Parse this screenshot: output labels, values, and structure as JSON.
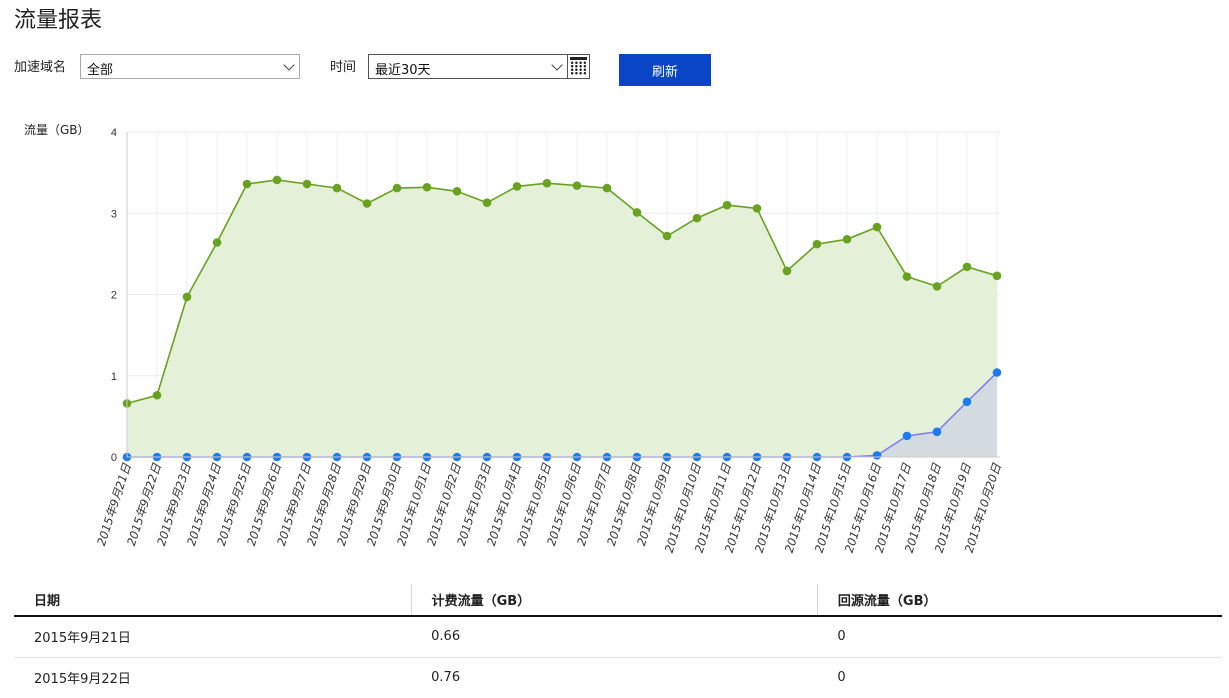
{
  "page": {
    "title": "流量报表"
  },
  "filters": {
    "domain_label": "加速域名",
    "domain_value": "全部",
    "time_label": "时间",
    "time_value": "最近30天",
    "refresh_label": "刷新"
  },
  "chart_data": {
    "type": "area",
    "ylabel": "流量（GB）",
    "ylim": [
      0,
      4
    ],
    "yticks": [
      0,
      1,
      2,
      3,
      4
    ],
    "grid": true,
    "categories": [
      "2015年9月21日",
      "2015年9月22日",
      "2015年9月23日",
      "2015年9月24日",
      "2015年9月25日",
      "2015年9月26日",
      "2015年9月27日",
      "2015年9月28日",
      "2015年9月29日",
      "2015年9月30日",
      "2015年10月1日",
      "2015年10月2日",
      "2015年10月3日",
      "2015年10月4日",
      "2015年10月5日",
      "2015年10月6日",
      "2015年10月7日",
      "2015年10月8日",
      "2015年10月9日",
      "2015年10月10日",
      "2015年10月11日",
      "2015年10月12日",
      "2015年10月13日",
      "2015年10月14日",
      "2015年10月15日",
      "2015年10月16日",
      "2015年10月17日",
      "2015年10月18日",
      "2015年10月19日",
      "2015年10月20日"
    ],
    "series": [
      {
        "name": "计费流量（GB）",
        "color": "#6aa121",
        "fill": "#e4f1d8",
        "values": [
          0.66,
          0.76,
          1.97,
          2.64,
          3.36,
          3.41,
          3.36,
          3.31,
          3.12,
          3.31,
          3.32,
          3.27,
          3.13,
          3.33,
          3.37,
          3.34,
          3.31,
          3.01,
          2.72,
          2.94,
          3.1,
          3.06,
          2.29,
          2.62,
          2.68,
          2.83,
          2.22,
          2.1,
          2.34,
          2.23
        ]
      },
      {
        "name": "回源流量（GB）",
        "color": "#1a7cf0",
        "line": "#8080f0",
        "fill": "#d3dbe0",
        "values": [
          0,
          0,
          0,
          0,
          0,
          0,
          0,
          0,
          0,
          0,
          0,
          0,
          0,
          0,
          0,
          0,
          0,
          0,
          0,
          0,
          0,
          0,
          0,
          0,
          0,
          0.02,
          0.26,
          0.31,
          0.68,
          1.04
        ]
      }
    ]
  },
  "table": {
    "headers": [
      "日期",
      "计费流量（GB）",
      "回源流量（GB）"
    ],
    "rows": [
      [
        "2015年9月21日",
        "0.66",
        "0"
      ],
      [
        "2015年9月22日",
        "0.76",
        "0"
      ]
    ]
  }
}
